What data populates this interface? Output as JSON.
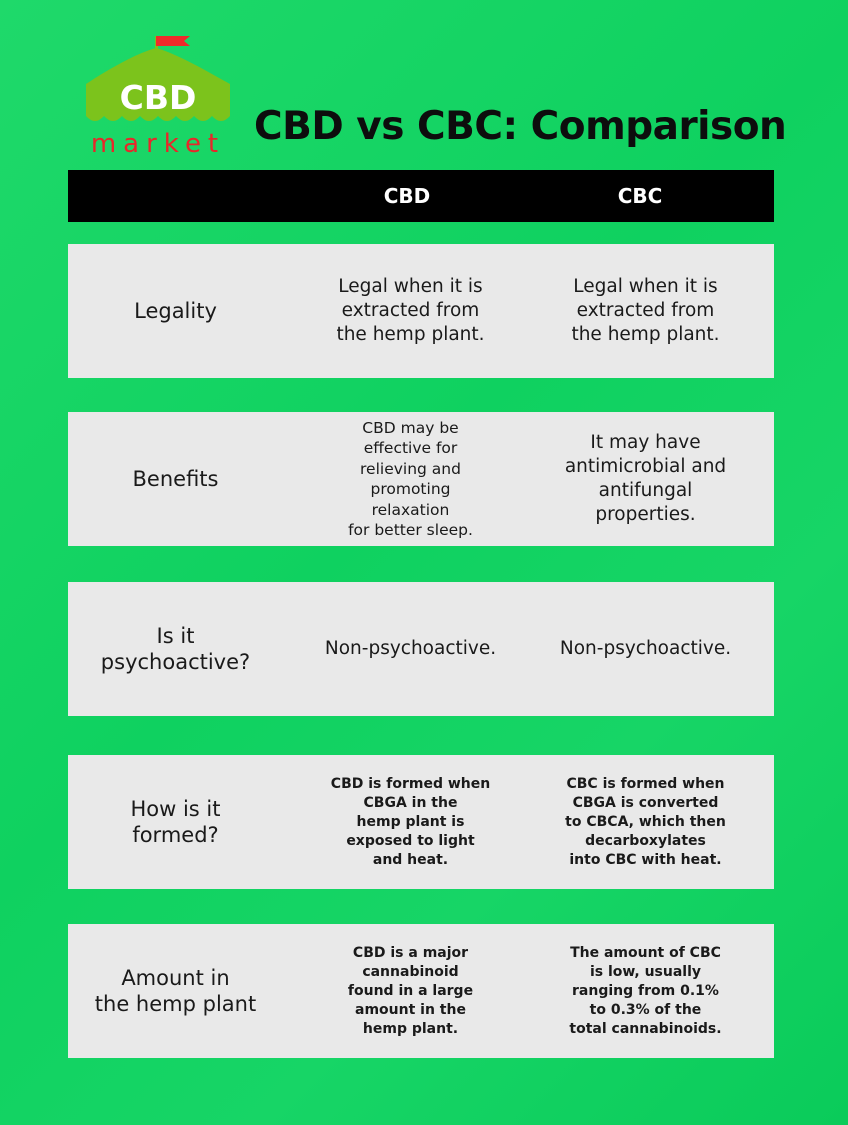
{
  "logo": {
    "text": "CBD",
    "subtext": "market",
    "colors": {
      "tent": "#7cc31c",
      "flag": "#f02a2a",
      "market": "#e8272a"
    }
  },
  "title": "CBD vs CBC: Comparison",
  "header": {
    "col1": "CBD",
    "col2": "CBC"
  },
  "rows": [
    {
      "label": "Legality",
      "cbd": "Legal when it is\nextracted from\nthe hemp plant.",
      "cbc": "Legal when it is\nextracted from\nthe hemp plant."
    },
    {
      "label": "Benefits",
      "cbd": "CBD may be\neffective for\nrelieving and\npromoting\nrelaxation\nfor better sleep.",
      "cbc": "It may have\nantimicrobial and\nantifungal\nproperties."
    },
    {
      "label": "Is it\npsychoactive?",
      "cbd": "Non-psychoactive.",
      "cbc": "Non-psychoactive."
    },
    {
      "label": "How is it\nformed?",
      "cbd": "CBD is formed when\nCBGA in the\nhemp plant is\nexposed to light\nand heat.",
      "cbc": "CBC is formed when\nCBGA is converted\nto CBCA, which then\ndecarboxylates\ninto CBC with heat."
    },
    {
      "label": "Amount in\nthe hemp plant",
      "cbd": "CBD is a major\ncannabinoid\nfound in a large\namount in the\nhemp plant.",
      "cbc": "The amount of CBC\nis low, usually\nranging from 0.1%\nto 0.3% of the\ntotal cannabinoids."
    }
  ]
}
